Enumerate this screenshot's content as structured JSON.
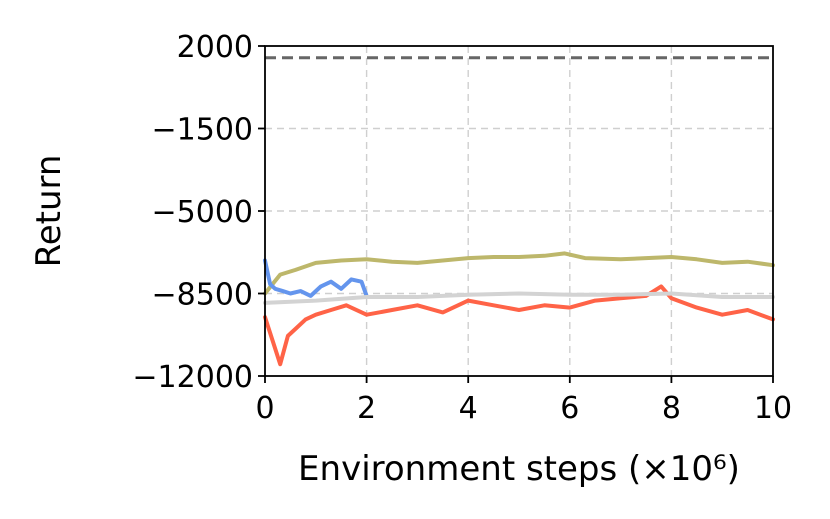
{
  "chart_data": {
    "type": "line",
    "xlabel": "Environment steps (×10⁶)",
    "ylabel": "Return",
    "xlim": [
      0,
      10
    ],
    "ylim": [
      -12000,
      2000
    ],
    "xticks": [
      0,
      2,
      4,
      6,
      8,
      10
    ],
    "xtick_labels": [
      "0",
      "2",
      "4",
      "6",
      "8",
      "10"
    ],
    "yticks": [
      -12000,
      -8500,
      -5000,
      -1500,
      2000
    ],
    "ytick_labels": [
      "−12000",
      "−8500",
      "−5000",
      "−1500",
      "2000"
    ],
    "grid": true,
    "reference_line": {
      "y": 1500,
      "style": "dashed",
      "color": "#666666"
    },
    "series": [
      {
        "color": "#bdb76b",
        "x": [
          0,
          0.3,
          0.6,
          1.0,
          1.5,
          2.0,
          2.5,
          3.0,
          3.5,
          4.0,
          4.5,
          5.0,
          5.5,
          5.9,
          6.3,
          7.0,
          7.5,
          8.0,
          8.5,
          9.0,
          9.5,
          10.0
        ],
        "y": [
          -8500,
          -7700,
          -7500,
          -7200,
          -7100,
          -7050,
          -7150,
          -7200,
          -7100,
          -7000,
          -6950,
          -6950,
          -6900,
          -6800,
          -7000,
          -7050,
          -7000,
          -6950,
          -7050,
          -7200,
          -7150,
          -7300
        ]
      },
      {
        "color": "#6495ed",
        "x": [
          0,
          0.1,
          0.2,
          0.35,
          0.5,
          0.7,
          0.9,
          1.1,
          1.3,
          1.5,
          1.7,
          1.9,
          2.0
        ],
        "y": [
          -7100,
          -8100,
          -8300,
          -8400,
          -8500,
          -8400,
          -8600,
          -8200,
          -8000,
          -8300,
          -7900,
          -8000,
          -8600
        ]
      },
      {
        "color": "#ff6347",
        "x": [
          0,
          0.15,
          0.3,
          0.45,
          0.6,
          0.8,
          1.0,
          1.3,
          1.6,
          2.0,
          2.5,
          3.0,
          3.5,
          4.0,
          4.5,
          5.0,
          5.5,
          6.0,
          6.5,
          7.0,
          7.5,
          7.8,
          8.0,
          8.5,
          9.0,
          9.5,
          10.0
        ],
        "y": [
          -9500,
          -10500,
          -11500,
          -10300,
          -10000,
          -9600,
          -9400,
          -9200,
          -9000,
          -9400,
          -9200,
          -9000,
          -9300,
          -8800,
          -9000,
          -9200,
          -9000,
          -9100,
          -8800,
          -8700,
          -8600,
          -8200,
          -8700,
          -9100,
          -9400,
          -9200,
          -9600
        ]
      },
      {
        "color": "#d3d3d3",
        "x": [
          0,
          1,
          2,
          3,
          4,
          5,
          6,
          7,
          8,
          9,
          10
        ],
        "y": [
          -8900,
          -8800,
          -8650,
          -8650,
          -8550,
          -8500,
          -8550,
          -8550,
          -8500,
          -8650,
          -8650
        ]
      }
    ]
  }
}
